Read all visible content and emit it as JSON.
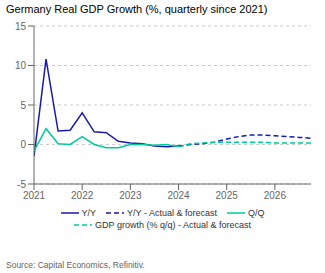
{
  "chart_data": {
    "type": "line",
    "title": "Germany Real GDP Growth (%, quarterly since 2021)",
    "annotations": [
      "Source: Capital Economics, Refinitiv."
    ],
    "x": [
      2021.0,
      2021.25,
      2021.5,
      2021.75,
      2022.0,
      2022.25,
      2022.5,
      2022.75,
      2023.0,
      2023.25,
      2023.5,
      2023.75,
      2024.0,
      2024.25,
      2024.5,
      2024.75,
      2025.0,
      2025.25,
      2025.5,
      2025.75,
      2026.0,
      2026.25,
      2026.5,
      2026.75
    ],
    "series": [
      {
        "name": "Y/Y",
        "color": "#1a1aaa",
        "line_style": "solid",
        "values": [
          -1.5,
          10.8,
          1.7,
          1.8,
          4.0,
          1.6,
          1.5,
          0.4,
          0.2,
          0.1,
          -0.2,
          -0.3,
          -0.2,
          null,
          null,
          null,
          null,
          null,
          null,
          null,
          null,
          null,
          null,
          null
        ]
      },
      {
        "name": "Y/Y - Actual & forecast",
        "color": "#1a1aaa",
        "line_style": "dashed",
        "values": [
          null,
          null,
          null,
          null,
          null,
          null,
          null,
          null,
          null,
          null,
          null,
          null,
          -0.2,
          0.0,
          0.1,
          0.3,
          0.7,
          1.0,
          1.2,
          1.2,
          1.1,
          1.0,
          0.9,
          0.8
        ]
      },
      {
        "name": "Q/Q",
        "color": "#00cc99",
        "line_style": "solid",
        "values": [
          -0.8,
          2.0,
          0.1,
          0.0,
          1.0,
          0.0,
          -0.4,
          -0.4,
          0.0,
          0.0,
          -0.1,
          0.0,
          -0.3,
          null,
          null,
          null,
          null,
          null,
          null,
          null,
          null,
          null,
          null,
          null
        ]
      },
      {
        "name": "GDP growth (% q/q) - Actual & forecast",
        "color": "#00cc99",
        "line_style": "dashed",
        "values": [
          null,
          null,
          null,
          null,
          null,
          null,
          null,
          null,
          null,
          null,
          null,
          null,
          -0.3,
          0.1,
          0.2,
          0.3,
          0.3,
          0.3,
          0.3,
          0.3,
          0.2,
          0.2,
          0.2,
          0.2
        ]
      }
    ],
    "xlim": [
      2021.0,
      2026.75
    ],
    "xticks": [
      2021,
      2022,
      2023,
      2024,
      2025,
      2026
    ],
    "ylim": [
      -5,
      15
    ],
    "yticks": [
      -5,
      0,
      5,
      10,
      15
    ],
    "grid": true,
    "legend": "bottom"
  }
}
